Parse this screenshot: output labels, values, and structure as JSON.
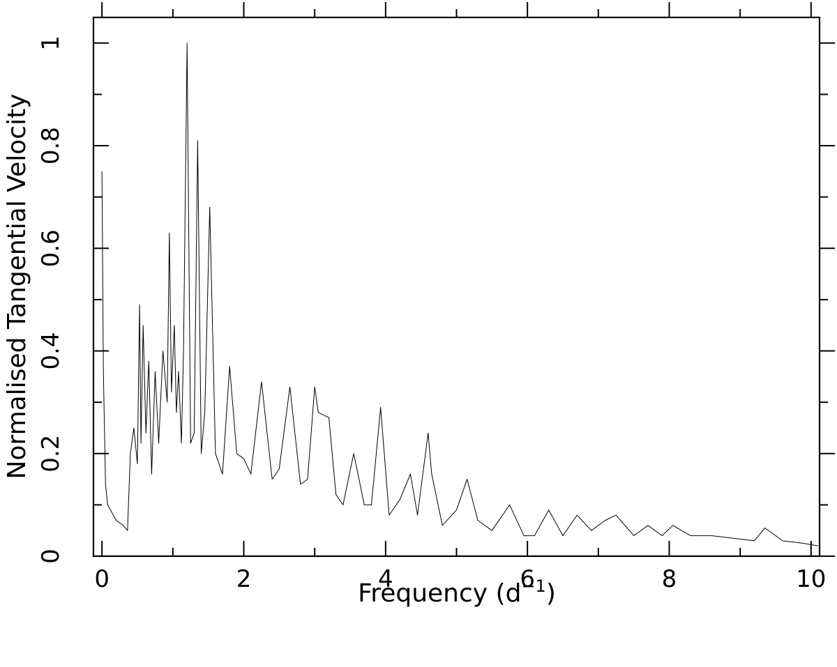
{
  "chart_data": {
    "type": "line",
    "xlabel": "Frequency (d",
    "xlabel_superscript": "−1",
    "xlabel_suffix": ")",
    "ylabel": "Normalised Tangential Velocity",
    "xlim": [
      -0.12,
      10.12
    ],
    "ylim": [
      0,
      1.05
    ],
    "x_ticks": [
      0,
      2,
      4,
      6,
      8,
      10
    ],
    "x_minor_step": 1,
    "y_ticks": [
      0,
      0.2,
      0.4,
      0.6,
      0.8,
      1
    ],
    "y_minor_step": 0.1,
    "tick_labels_x": [
      "0",
      "2",
      "4",
      "6",
      "8",
      "10"
    ],
    "tick_labels_y": [
      "0",
      "0.2",
      "0.4",
      "0.6",
      "0.8",
      "1"
    ],
    "grid": false,
    "legend": "none",
    "line_color": "#000000",
    "series": [
      {
        "x": [
          0.0,
          0.02,
          0.05,
          0.08,
          0.12,
          0.2,
          0.3,
          0.36,
          0.4,
          0.45,
          0.5,
          0.53,
          0.55,
          0.58,
          0.62,
          0.66,
          0.7,
          0.75,
          0.8,
          0.86,
          0.92,
          0.95,
          0.98,
          1.02,
          1.05,
          1.08,
          1.12,
          1.15,
          1.2,
          1.25,
          1.3,
          1.35,
          1.4,
          1.45,
          1.52,
          1.6,
          1.7,
          1.8,
          1.9,
          2.0,
          2.1,
          2.25,
          2.4,
          2.5,
          2.65,
          2.8,
          2.9,
          3.0,
          3.05,
          3.2,
          3.3,
          3.4,
          3.55,
          3.7,
          3.8,
          3.93,
          4.05,
          4.2,
          4.35,
          4.45,
          4.6,
          4.65,
          4.8,
          5.0,
          5.15,
          5.3,
          5.5,
          5.75,
          5.95,
          6.1,
          6.3,
          6.5,
          6.7,
          6.9,
          7.1,
          7.25,
          7.5,
          7.7,
          7.9,
          8.05,
          8.3,
          8.6,
          8.9,
          9.2,
          9.35,
          9.6,
          9.9,
          10.1
        ],
        "y": [
          0.75,
          0.36,
          0.14,
          0.1,
          0.09,
          0.07,
          0.06,
          0.05,
          0.2,
          0.25,
          0.18,
          0.49,
          0.22,
          0.45,
          0.24,
          0.38,
          0.16,
          0.36,
          0.22,
          0.4,
          0.3,
          0.63,
          0.32,
          0.45,
          0.28,
          0.36,
          0.22,
          0.4,
          1.0,
          0.22,
          0.24,
          0.81,
          0.2,
          0.28,
          0.68,
          0.2,
          0.16,
          0.37,
          0.2,
          0.19,
          0.16,
          0.34,
          0.15,
          0.17,
          0.33,
          0.14,
          0.15,
          0.33,
          0.28,
          0.27,
          0.12,
          0.1,
          0.2,
          0.1,
          0.1,
          0.29,
          0.08,
          0.11,
          0.16,
          0.08,
          0.24,
          0.16,
          0.06,
          0.09,
          0.15,
          0.07,
          0.05,
          0.1,
          0.04,
          0.04,
          0.09,
          0.04,
          0.08,
          0.05,
          0.07,
          0.08,
          0.04,
          0.06,
          0.04,
          0.06,
          0.04,
          0.04,
          0.035,
          0.03,
          0.055,
          0.03,
          0.025,
          0.02
        ]
      }
    ]
  }
}
